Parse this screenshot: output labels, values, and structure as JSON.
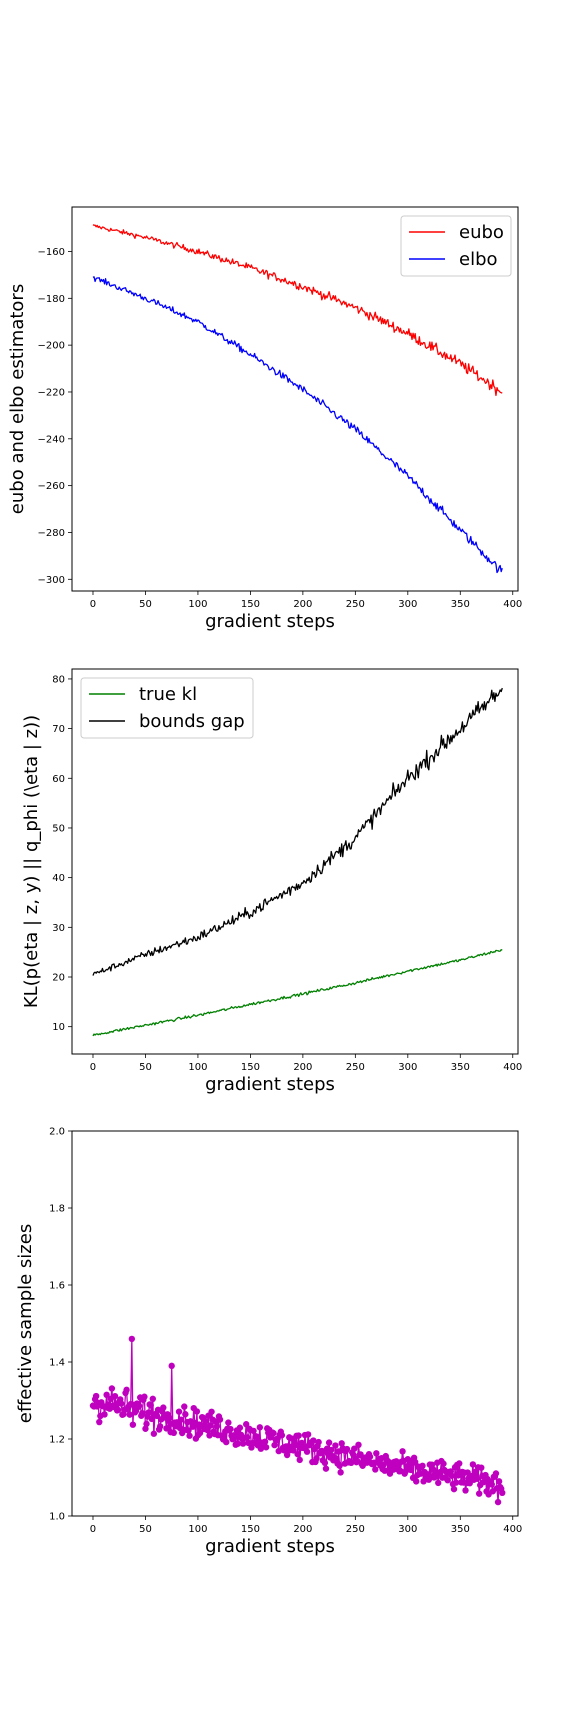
{
  "chart_data": [
    {
      "type": "line",
      "xlabel": "gradient steps",
      "ylabel": "eubo and elbo estimators",
      "xlim": [
        -20,
        405
      ],
      "ylim": [
        -305,
        -141
      ],
      "xticks": [
        0,
        50,
        100,
        150,
        200,
        250,
        300,
        350,
        400
      ],
      "yticks": [
        -160,
        -180,
        -200,
        -220,
        -240,
        -260,
        -280,
        -300
      ],
      "legend_position": "upper right",
      "noise": 1.4,
      "series": [
        {
          "name": "eubo",
          "color": "#ff0000",
          "x": [
            0,
            50,
            100,
            150,
            200,
            250,
            300,
            350,
            390
          ],
          "y": [
            -149,
            -154,
            -160,
            -167,
            -175,
            -184,
            -195,
            -208,
            -220
          ]
        },
        {
          "name": "elbo",
          "color": "#0000ff",
          "x": [
            0,
            50,
            100,
            150,
            200,
            250,
            300,
            350,
            390
          ],
          "y": [
            -171,
            -180,
            -190,
            -204,
            -219,
            -236,
            -256,
            -279,
            -297
          ]
        }
      ]
    },
    {
      "type": "line",
      "xlabel": "gradient steps",
      "ylabel": "KL(p(eta | z, y) || q_phi (\\eta | z))",
      "xlim": [
        -20,
        405
      ],
      "ylim": [
        4.5,
        82
      ],
      "xticks": [
        0,
        50,
        100,
        150,
        200,
        250,
        300,
        350,
        400
      ],
      "yticks": [
        10,
        20,
        30,
        40,
        50,
        60,
        70,
        80
      ],
      "legend_position": "upper left",
      "noise": 0.9,
      "series": [
        {
          "name": "true kl",
          "color": "#008000",
          "x": [
            0,
            50,
            100,
            150,
            200,
            250,
            300,
            350,
            390
          ],
          "y": [
            8.3,
            10.3,
            12.3,
            14.5,
            16.6,
            18.8,
            21.2,
            23.4,
            25.5
          ]
        },
        {
          "name": "bounds gap",
          "color": "#000000",
          "x": [
            0,
            50,
            100,
            150,
            200,
            250,
            300,
            350,
            390
          ],
          "y": [
            20.5,
            24.5,
            28,
            33,
            39,
            48,
            60,
            70,
            78
          ]
        }
      ]
    },
    {
      "type": "line",
      "xlabel": "gradient steps",
      "ylabel": "effective sample sizes",
      "xlim": [
        -20,
        405
      ],
      "ylim": [
        1.0,
        2.0
      ],
      "xticks": [
        0,
        50,
        100,
        150,
        200,
        250,
        300,
        350,
        400
      ],
      "yticks": [
        1.0,
        1.2,
        1.4,
        1.6,
        1.8,
        2.0
      ],
      "legend_position": "none",
      "noise": 0.035,
      "markers": "circle",
      "series": [
        {
          "color": "#bf00bf",
          "x": [
            0,
            50,
            100,
            150,
            200,
            250,
            300,
            350,
            390
          ],
          "y": [
            1.3,
            1.27,
            1.24,
            1.21,
            1.18,
            1.15,
            1.12,
            1.1,
            1.08
          ]
        }
      ]
    }
  ]
}
